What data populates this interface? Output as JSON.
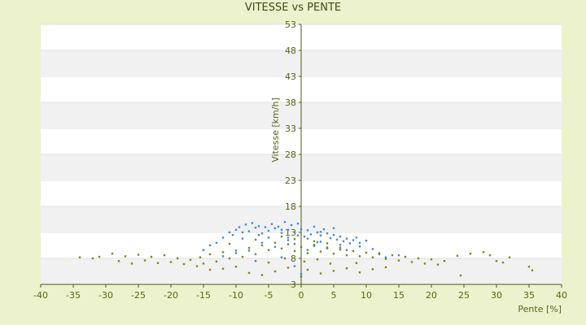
{
  "chart_data": {
    "type": "scatter",
    "title": "VITESSE vs PENTE",
    "xlabel": "Pente [%]",
    "ylabel": "Vitesse [km/h]",
    "xlim": [
      -40,
      40
    ],
    "ylim": [
      3,
      53
    ],
    "x_ticks": [
      -40,
      -35,
      -30,
      -25,
      -20,
      -15,
      -10,
      -5,
      0,
      5,
      10,
      15,
      20,
      25,
      30,
      35,
      40
    ],
    "y_ticks": [
      3,
      8,
      13,
      18,
      23,
      28,
      33,
      38,
      43,
      48,
      53
    ],
    "grid": "horizontal alternating bands",
    "legend": "none",
    "colors": {
      "plot_background": "#ffffff",
      "band": "#f1f1f1",
      "page_background": "#ecf2cc",
      "axis": "#4a5a14",
      "series_blue": "#3d8fd6",
      "series_olive": "#7a8a1a"
    },
    "series": [
      {
        "color": "#3d8fd6",
        "points": [
          [
            -14,
            10.5
          ],
          [
            -13,
            11.0
          ],
          [
            -12,
            12.0
          ],
          [
            -11,
            13.0
          ],
          [
            -10.5,
            12.5
          ],
          [
            -10,
            13.5
          ],
          [
            -9.5,
            14.0
          ],
          [
            -9,
            13.0
          ],
          [
            -8.5,
            14.5
          ],
          [
            -8,
            13.2
          ],
          [
            -7.5,
            14.8
          ],
          [
            -7,
            13.9
          ],
          [
            -6.5,
            14.2
          ],
          [
            -6,
            12.8
          ],
          [
            -5.5,
            14.0
          ],
          [
            -5,
            13.3
          ],
          [
            -4.5,
            14.6
          ],
          [
            -4,
            13.8
          ],
          [
            -3.5,
            14.1
          ],
          [
            -3,
            12.9
          ],
          [
            -2.5,
            15.0
          ],
          [
            -2,
            13.5
          ],
          [
            -1.5,
            14.4
          ],
          [
            -1,
            13.0
          ],
          [
            -0.5,
            14.7
          ],
          [
            0,
            13.6
          ],
          [
            0.5,
            12.2
          ],
          [
            1,
            13.4
          ],
          [
            1.5,
            12.6
          ],
          [
            2,
            14.1
          ],
          [
            2.5,
            13.0
          ],
          [
            3,
            12.4
          ],
          [
            3.5,
            13.6
          ],
          [
            4,
            12.8
          ],
          [
            4.5,
            11.9
          ],
          [
            5,
            12.5
          ],
          [
            5.5,
            11.6
          ],
          [
            6,
            12.2
          ],
          [
            6.5,
            11.3
          ],
          [
            7,
            11.8
          ],
          [
            7.5,
            10.9
          ],
          [
            8,
            11.5
          ],
          [
            8.5,
            12.0
          ],
          [
            9,
            11.0
          ],
          [
            10,
            11.4
          ],
          [
            11,
            9.8
          ],
          [
            -8,
            9.5
          ],
          [
            -6,
            11.0
          ],
          [
            -4,
            10.2
          ],
          [
            -2,
            11.5
          ],
          [
            -1,
            10.8
          ],
          [
            1,
            9.6
          ],
          [
            2,
            10.4
          ],
          [
            3,
            11.2
          ],
          [
            4,
            9.9
          ],
          [
            6,
            10.1
          ],
          [
            -12,
            8.4
          ],
          [
            -10,
            9.0
          ],
          [
            -7,
            7.5
          ],
          [
            -3,
            8.2
          ],
          [
            -1,
            6.5
          ],
          [
            0,
            5.0
          ],
          [
            12,
            9.0
          ],
          [
            13,
            8.2
          ],
          [
            15,
            8.6
          ],
          [
            -15,
            9.6
          ],
          [
            -5,
            12.0
          ],
          [
            -3,
            13.5
          ],
          [
            -2,
            12.0
          ],
          [
            1,
            11.8
          ],
          [
            3,
            13.1
          ],
          [
            5,
            13.8
          ],
          [
            -9,
            11.8
          ],
          [
            -6.5,
            12.5
          ],
          [
            -0.5,
            12.4
          ],
          [
            2.5,
            11.1
          ],
          [
            7,
            9.6
          ],
          [
            9,
            10.3
          ]
        ]
      },
      {
        "color": "#7a8a1a",
        "points": [
          [
            -34,
            8.2
          ],
          [
            -32,
            8.0
          ],
          [
            -31,
            8.3
          ],
          [
            -29,
            8.9
          ],
          [
            -28,
            7.5
          ],
          [
            -27,
            8.4
          ],
          [
            -26,
            7.0
          ],
          [
            -25,
            8.7
          ],
          [
            -24,
            7.6
          ],
          [
            -23,
            8.3
          ],
          [
            -22,
            7.1
          ],
          [
            -21,
            8.6
          ],
          [
            -20,
            7.3
          ],
          [
            -19,
            8.0
          ],
          [
            -18,
            6.9
          ],
          [
            -17,
            7.7
          ],
          [
            -16,
            6.5
          ],
          [
            -15.5,
            8.2
          ],
          [
            -15,
            7.0
          ],
          [
            -14,
            8.8
          ],
          [
            -13,
            7.4
          ],
          [
            -12,
            9.2
          ],
          [
            -11,
            8.0
          ],
          [
            -10,
            9.5
          ],
          [
            -9,
            8.3
          ],
          [
            -8,
            10.0
          ],
          [
            -7,
            8.8
          ],
          [
            -6,
            10.5
          ],
          [
            -5,
            9.6
          ],
          [
            -4,
            11.0
          ],
          [
            -3,
            9.9
          ],
          [
            -2,
            10.7
          ],
          [
            -1,
            9.4
          ],
          [
            0,
            10.2
          ],
          [
            1,
            9.0
          ],
          [
            2,
            10.6
          ],
          [
            3,
            9.3
          ],
          [
            4,
            10.1
          ],
          [
            5,
            8.9
          ],
          [
            6,
            9.7
          ],
          [
            7,
            8.6
          ],
          [
            8,
            9.4
          ],
          [
            9,
            8.4
          ],
          [
            10,
            9.1
          ],
          [
            11,
            8.2
          ],
          [
            12,
            8.8
          ],
          [
            13,
            7.9
          ],
          [
            14,
            8.6
          ],
          [
            15,
            7.6
          ],
          [
            16,
            8.3
          ],
          [
            17,
            7.3
          ],
          [
            18,
            8.0
          ],
          [
            19,
            7.0
          ],
          [
            20,
            7.8
          ],
          [
            21,
            6.8
          ],
          [
            22,
            7.5
          ],
          [
            24,
            8.5
          ],
          [
            26,
            8.9
          ],
          [
            28,
            9.2
          ],
          [
            29,
            8.6
          ],
          [
            30,
            7.5
          ],
          [
            31,
            7.2
          ],
          [
            32,
            8.2
          ],
          [
            35,
            6.4
          ],
          [
            35.5,
            5.7
          ],
          [
            24.5,
            4.7
          ],
          [
            -8,
            5.2
          ],
          [
            -6,
            4.8
          ],
          [
            -4,
            5.5
          ],
          [
            -2,
            6.2
          ],
          [
            0,
            4.5
          ],
          [
            1,
            5.8
          ],
          [
            3,
            5.1
          ],
          [
            5,
            5.6
          ],
          [
            7,
            6.1
          ],
          [
            9,
            5.3
          ],
          [
            11,
            5.9
          ],
          [
            13,
            6.3
          ],
          [
            -10,
            6.4
          ],
          [
            -12,
            6.0
          ],
          [
            -14,
            5.8
          ],
          [
            -11,
            10.8
          ],
          [
            -7,
            11.6
          ],
          [
            -3,
            12.2
          ],
          [
            -1,
            11.7
          ],
          [
            2,
            11.3
          ],
          [
            4,
            10.9
          ],
          [
            6,
            10.6
          ],
          [
            -5,
            7.2
          ],
          [
            -2.5,
            8.0
          ],
          [
            0.5,
            7.4
          ],
          [
            2.5,
            7.8
          ],
          [
            4.5,
            7.0
          ],
          [
            8.5,
            7.1
          ]
        ]
      }
    ]
  }
}
